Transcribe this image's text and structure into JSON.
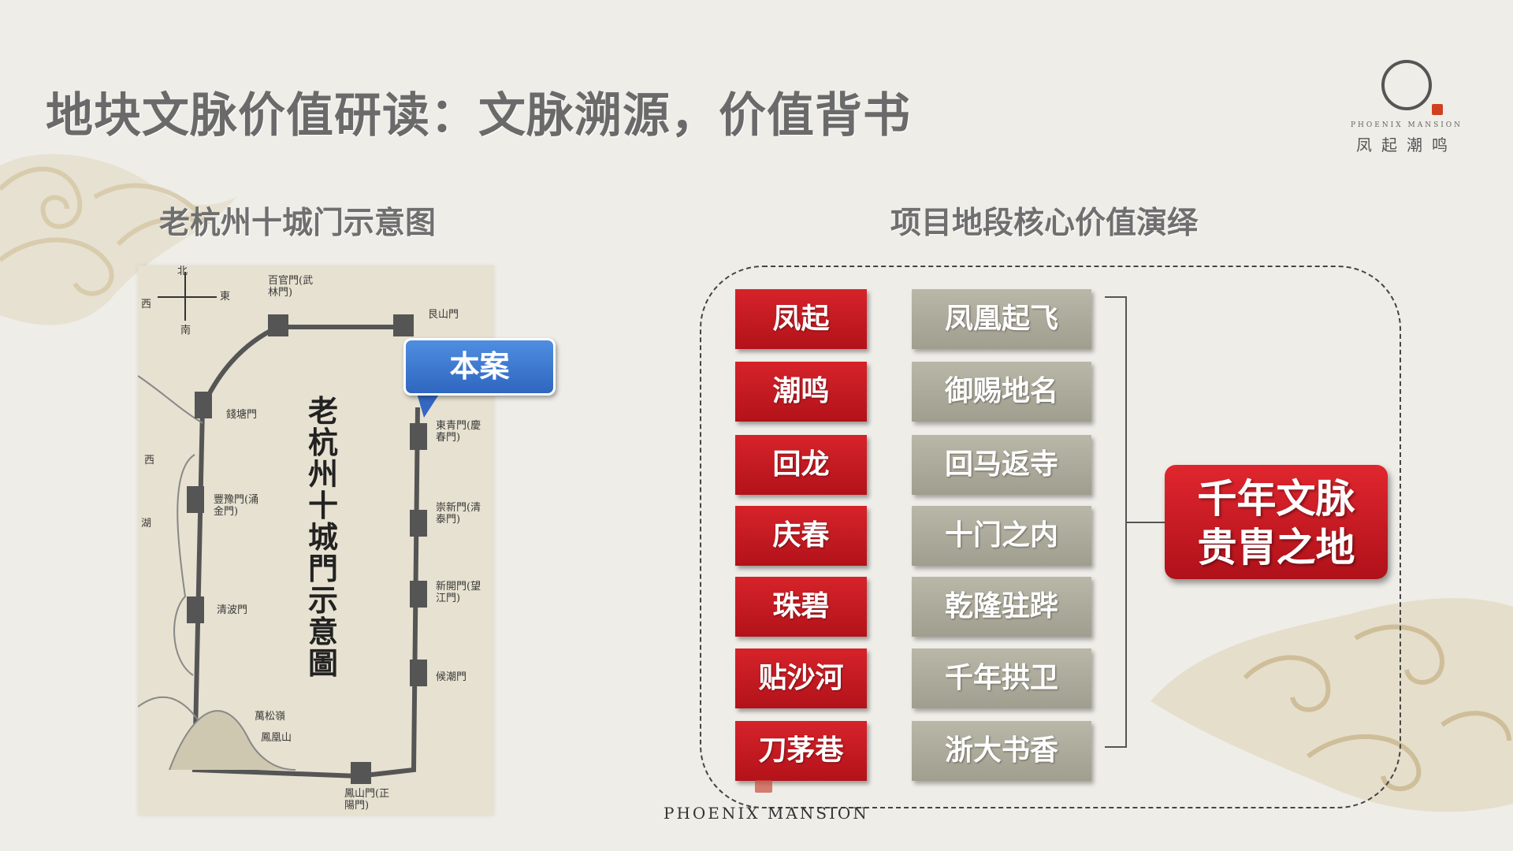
{
  "title": "地块文脉价值研读：文脉溯源，价值背书",
  "logo": {
    "en": "PHOENIX MANSION",
    "cn": "凤起潮鸣"
  },
  "left_section": {
    "subtitle": "老杭州十城门示意图",
    "map": {
      "vertical_title": "老杭州十城門示意圖",
      "compass": {
        "north": "北",
        "east": "東",
        "south": "南",
        "west": "西"
      },
      "labels": [
        "百官門(武林門)",
        "艮山門",
        "錢塘門",
        "東青門(慶春門)",
        "豐豫門(涌金門)",
        "崇新門(清泰門)",
        "新開門(望江門)",
        "清波門",
        "候潮門",
        "萬松嶺",
        "鳳凰山",
        "鳳山門(正陽門)",
        "西",
        "湖"
      ],
      "callout": "本案"
    }
  },
  "right_section": {
    "subtitle": "项目地段核心价值演绎",
    "rows": [
      {
        "key": "凤起",
        "value": "凤凰起飞"
      },
      {
        "key": "潮鸣",
        "value": "御赐地名"
      },
      {
        "key": "回龙",
        "value": "回马返寺"
      },
      {
        "key": "庆春",
        "value": "十门之内"
      },
      {
        "key": "珠碧",
        "value": "乾隆驻跸"
      },
      {
        "key": "贴沙河",
        "value": "千年拱卫"
      },
      {
        "key": "刀茅巷",
        "value": "浙大书香"
      }
    ],
    "conclusion": [
      "千年文脉",
      "贵胄之地"
    ]
  },
  "footer": "PHOENIX MANSION",
  "colors": {
    "red": "#c41a22",
    "gray_box": "#aeac9c",
    "callout_blue": "#3a74cc",
    "title_gray": "#6a6a6a"
  }
}
